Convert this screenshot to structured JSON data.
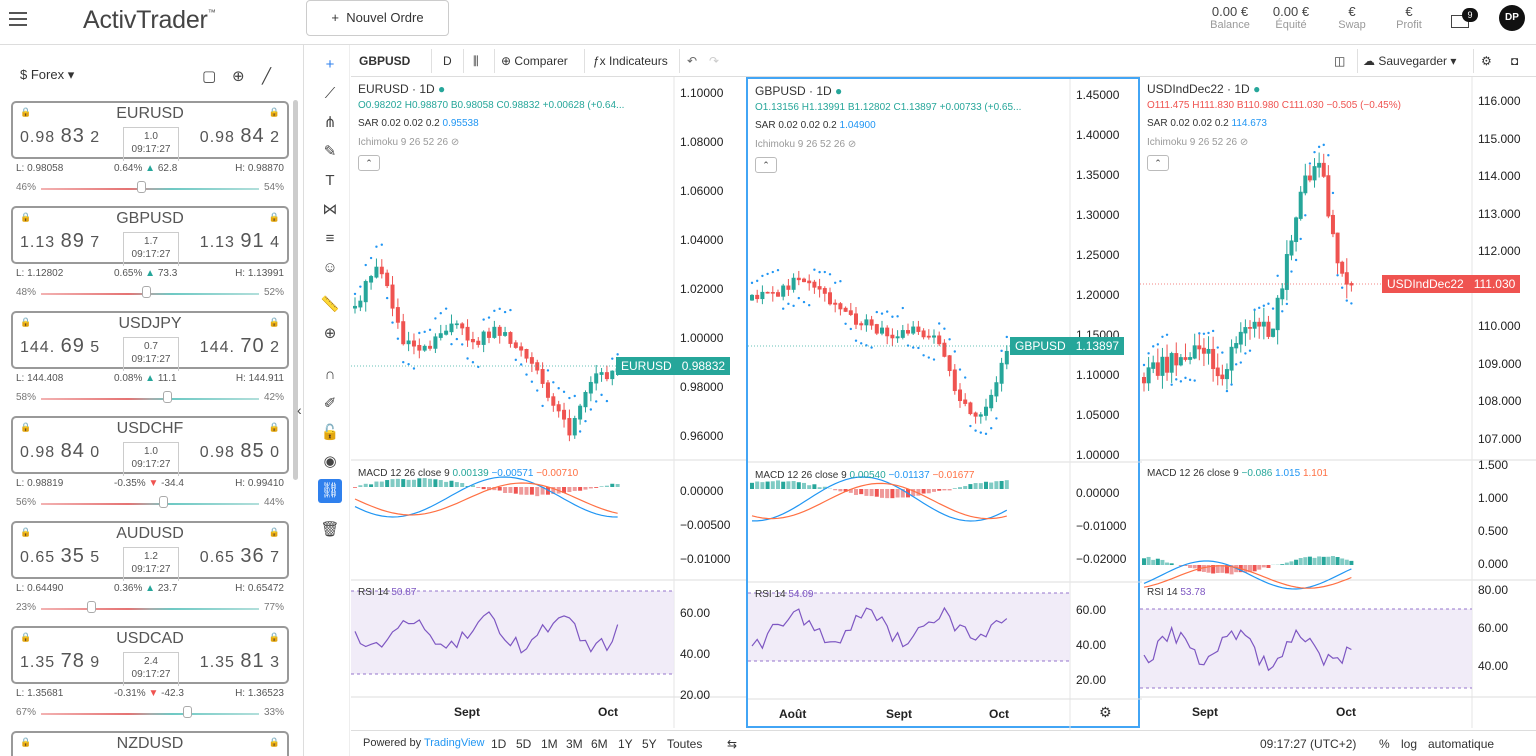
{
  "header": {
    "logo": "ActivTrader",
    "logo_tm": "™",
    "new_order": "Nouvel Ordre",
    "new_order_icon": "+",
    "stats": [
      {
        "value": "0.00 €",
        "label": "Balance"
      },
      {
        "value": "0.00 €",
        "label": "Équité"
      },
      {
        "value": "€",
        "label": "Swap"
      },
      {
        "value": "€",
        "label": "Profit"
      }
    ],
    "notif_count": "9",
    "avatar": "DP"
  },
  "sidebar": {
    "category": "Forex",
    "pairs": [
      {
        "name": "EURUSD",
        "bid_a": "0.98",
        "bid_b": "83",
        "bid_c": "2",
        "ask_a": "0.98",
        "ask_b": "84",
        "ask_c": "2",
        "spread": "1.0",
        "time": "09:17:27",
        "low": "L: 0.98058",
        "chg": "0.64%",
        "pts": "62.8",
        "dir": "up",
        "high": "H: 0.98870",
        "lpct": "46%",
        "rpct": "54%",
        "knob": 0.46
      },
      {
        "name": "GBPUSD",
        "bid_a": "1.13",
        "bid_b": "89",
        "bid_c": "7",
        "ask_a": "1.13",
        "ask_b": "91",
        "ask_c": "4",
        "spread": "1.7",
        "time": "09:17:27",
        "low": "L: 1.12802",
        "chg": "0.65%",
        "pts": "73.3",
        "dir": "up",
        "high": "H: 1.13991",
        "lpct": "48%",
        "rpct": "52%",
        "knob": 0.48
      },
      {
        "name": "USDJPY",
        "bid_a": "144.",
        "bid_b": "69",
        "bid_c": "5",
        "ask_a": "144.",
        "ask_b": "70",
        "ask_c": "2",
        "spread": "0.7",
        "time": "09:17:27",
        "low": "L: 144.408",
        "chg": "0.08%",
        "pts": "11.1",
        "dir": "up",
        "high": "H: 144.911",
        "lpct": "58%",
        "rpct": "42%",
        "knob": 0.58
      },
      {
        "name": "USDCHF",
        "bid_a": "0.98",
        "bid_b": "84",
        "bid_c": "0",
        "ask_a": "0.98",
        "ask_b": "85",
        "ask_c": "0",
        "spread": "1.0",
        "time": "09:17:27",
        "low": "L: 0.98819",
        "chg": "-0.35%",
        "pts": "-34.4",
        "dir": "down",
        "high": "H: 0.99410",
        "lpct": "56%",
        "rpct": "44%",
        "knob": 0.56
      },
      {
        "name": "AUDUSD",
        "bid_a": "0.65",
        "bid_b": "35",
        "bid_c": "5",
        "ask_a": "0.65",
        "ask_b": "36",
        "ask_c": "7",
        "spread": "1.2",
        "time": "09:17:27",
        "low": "L: 0.64490",
        "chg": "0.36%",
        "pts": "23.7",
        "dir": "up",
        "high": "H: 0.65472",
        "lpct": "23%",
        "rpct": "77%",
        "knob": 0.23
      },
      {
        "name": "USDCAD",
        "bid_a": "1.35",
        "bid_b": "78",
        "bid_c": "9",
        "ask_a": "1.35",
        "ask_b": "81",
        "ask_c": "3",
        "spread": "2.4",
        "time": "09:17:27",
        "low": "L: 1.35681",
        "chg": "-0.31%",
        "pts": "-42.3",
        "dir": "down",
        "high": "H: 1.36523",
        "lpct": "67%",
        "rpct": "33%",
        "knob": 0.67
      },
      {
        "name": "NZDUSD",
        "bid_a": "",
        "bid_b": "",
        "bid_c": "",
        "ask_a": "",
        "ask_b": "",
        "ask_c": "",
        "spread": "",
        "time": "",
        "low": "",
        "chg": "",
        "pts": "",
        "dir": "up",
        "high": "",
        "lpct": "",
        "rpct": "",
        "knob": 0.5
      }
    ]
  },
  "toolbar": {
    "symbol": "GBPUSD",
    "interval": "D",
    "compare": "Comparer",
    "indicators": "Indicateurs",
    "save": "Sauvegarder"
  },
  "panels": [
    {
      "title": "EURUSD · 1D",
      "ohlc_o": "O0.98202",
      "ohlc_h": "H0.98870",
      "ohlc_b": "B0.98058",
      "ohlc_c": "C0.98832",
      "ohlc_chg": "+0.00628 (+0.64...",
      "sar": "SAR 0.02 0.02 0.2",
      "sar_val": "0.95538",
      "ichi": "Ichimoku 9 26 52 26",
      "macd": "MACD 12 26 close 9",
      "macd1": "0.00139",
      "macd2": "−0.00571",
      "macd3": "−0.00710",
      "rsi": "RSI 14",
      "rsi_val": "50.87",
      "price_label": "EURUSD",
      "price_val": "0.98832",
      "price_ticks": [
        "1.10000",
        "1.08000",
        "1.06000",
        "1.04000",
        "1.02000",
        "1.00000",
        "0.98000",
        "0.96000"
      ],
      "macd_ticks": [
        "0.00000",
        "−0.00500",
        "−0.01000"
      ],
      "rsi_ticks": [
        "60.00",
        "40.00",
        "20.00"
      ],
      "time_ticks": [
        "Sept",
        "Oct"
      ]
    },
    {
      "title": "GBPUSD · 1D",
      "ohlc_o": "O1.13156",
      "ohlc_h": "H1.13991",
      "ohlc_b": "B1.12802",
      "ohlc_c": "C1.13897",
      "ohlc_chg": "+0.00733 (+0.65...",
      "sar": "SAR 0.02 0.02 0.2",
      "sar_val": "1.04900",
      "ichi": "Ichimoku 9 26 52 26",
      "macd": "MACD 12 26 close 9",
      "macd1": "0.00540",
      "macd2": "−0.01137",
      "macd3": "−0.01677",
      "rsi": "RSI 14",
      "rsi_val": "54.09",
      "price_label": "GBPUSD",
      "price_val": "1.13897",
      "price_ticks": [
        "1.45000",
        "1.40000",
        "1.35000",
        "1.30000",
        "1.25000",
        "1.20000",
        "1.15000",
        "1.10000",
        "1.05000",
        "1.00000"
      ],
      "macd_ticks": [
        "0.00000",
        "−0.01000",
        "−0.02000"
      ],
      "rsi_ticks": [
        "60.00",
        "40.00",
        "20.00"
      ],
      "time_ticks": [
        "Août",
        "Sept",
        "Oct"
      ]
    },
    {
      "title": "USDIndDec22 · 1D",
      "ohlc_o": "O111.475",
      "ohlc_h": "H111.830",
      "ohlc_b": "B110.980",
      "ohlc_c": "C111.030",
      "ohlc_chg": "−0.505 (−0.45%)",
      "sar": "SAR 0.02 0.02 0.2",
      "sar_val": "114.673",
      "ichi": "Ichimoku 9 26 52 26",
      "macd": "MACD 12 26 close 9",
      "macd1": "−0.086",
      "macd2": "1.015",
      "macd3": "1.101",
      "rsi": "RSI 14",
      "rsi_val": "53.78",
      "price_label": "USDIndDec22",
      "price_val": "111.030",
      "price_ticks": [
        "116.000",
        "115.000",
        "114.000",
        "113.000",
        "112.000",
        "111.000",
        "110.000",
        "109.000",
        "108.000",
        "107.000"
      ],
      "macd_ticks": [
        "1.500",
        "1.000",
        "0.500",
        "0.000"
      ],
      "rsi_ticks": [
        "80.00",
        "60.00",
        "40.00"
      ],
      "time_ticks": [
        "Sept",
        "Oct"
      ]
    }
  ],
  "bottom": {
    "powered": "Powered by",
    "tv": "TradingView",
    "ranges": [
      "1D",
      "5D",
      "1M",
      "3M",
      "6M",
      "1Y",
      "5Y",
      "Toutes"
    ],
    "clock": "09:17:27 (UTC+2)",
    "pct": "%",
    "log": "log",
    "auto": "automatique"
  },
  "colors": {
    "up": "#26a69a",
    "down": "#ef5350",
    "sar": "#2196f3",
    "accent": "#2f80ed"
  }
}
